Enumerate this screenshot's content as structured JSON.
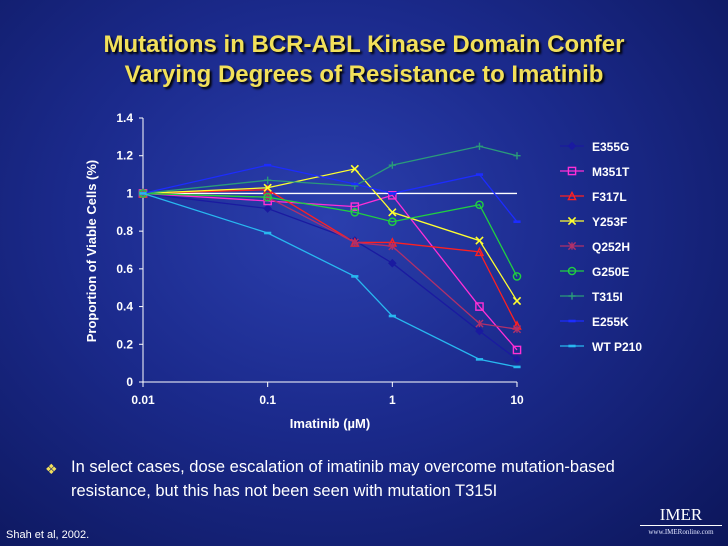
{
  "slide": {
    "title_line1": "Mutations in BCR-ABL Kinase Domain Confer",
    "title_line2": "Varying Degrees of Resistance to Imatinib",
    "bullet_text": "In select cases, dose escalation of imatinib may overcome mutation-based resistance, but this has not been seen with mutation T315I",
    "citation": "Shah et al, 2002.",
    "logo_main": "IMER",
    "logo_sub": "www.IMERonline.com",
    "title_color": "#f2e05a"
  },
  "chart_data": {
    "type": "line",
    "title": "",
    "xlabel": "Imatinib (µM)",
    "ylabel": "Proportion of Viable Cells (%)",
    "x_scale": "log",
    "x": [
      0.01,
      0.1,
      0.5,
      1,
      5,
      10
    ],
    "xticks": [
      "0.01",
      "0.1",
      "1",
      "10"
    ],
    "xtick_values": [
      0.01,
      0.1,
      1,
      10
    ],
    "yticks": [
      "0",
      "0.2",
      "0.4",
      "0.6",
      "0.8",
      "1",
      "1.2",
      "1.4"
    ],
    "ylim": [
      0,
      1.4
    ],
    "grid": false,
    "legend_position": "right",
    "reference_line": 1.0,
    "series": [
      {
        "name": "E355G",
        "color": "#1a1aa0",
        "marker": "diamond",
        "values": [
          1.0,
          0.92,
          0.75,
          0.63,
          0.27,
          0.12
        ]
      },
      {
        "name": "M351T",
        "color": "#ff2fd6",
        "marker": "square",
        "values": [
          1.0,
          0.96,
          0.93,
          0.99,
          0.4,
          0.17
        ]
      },
      {
        "name": "F317L",
        "color": "#ff2020",
        "marker": "triangle",
        "values": [
          1.0,
          1.02,
          0.74,
          0.74,
          0.69,
          0.3
        ]
      },
      {
        "name": "Y253F",
        "color": "#ffff30",
        "marker": "x",
        "values": [
          1.0,
          1.03,
          1.13,
          0.9,
          0.75,
          0.43
        ]
      },
      {
        "name": "Q252H",
        "color": "#b0306a",
        "marker": "star",
        "values": [
          1.0,
          0.98,
          0.74,
          0.72,
          0.31,
          0.28
        ]
      },
      {
        "name": "G250E",
        "color": "#20d040",
        "marker": "circle",
        "values": [
          1.0,
          0.98,
          0.9,
          0.85,
          0.94,
          0.56
        ]
      },
      {
        "name": "T315I",
        "color": "#2a9a7a",
        "marker": "plus",
        "values": [
          1.0,
          1.07,
          1.04,
          1.15,
          1.25,
          1.2
        ]
      },
      {
        "name": "E255K",
        "color": "#1c2cff",
        "marker": "dash",
        "values": [
          1.0,
          1.15,
          1.05,
          1.0,
          1.1,
          0.85
        ]
      },
      {
        "name": "WT P210",
        "color": "#28b8f0",
        "marker": "dash",
        "values": [
          1.0,
          0.79,
          0.56,
          0.35,
          0.12,
          0.08
        ]
      }
    ]
  }
}
